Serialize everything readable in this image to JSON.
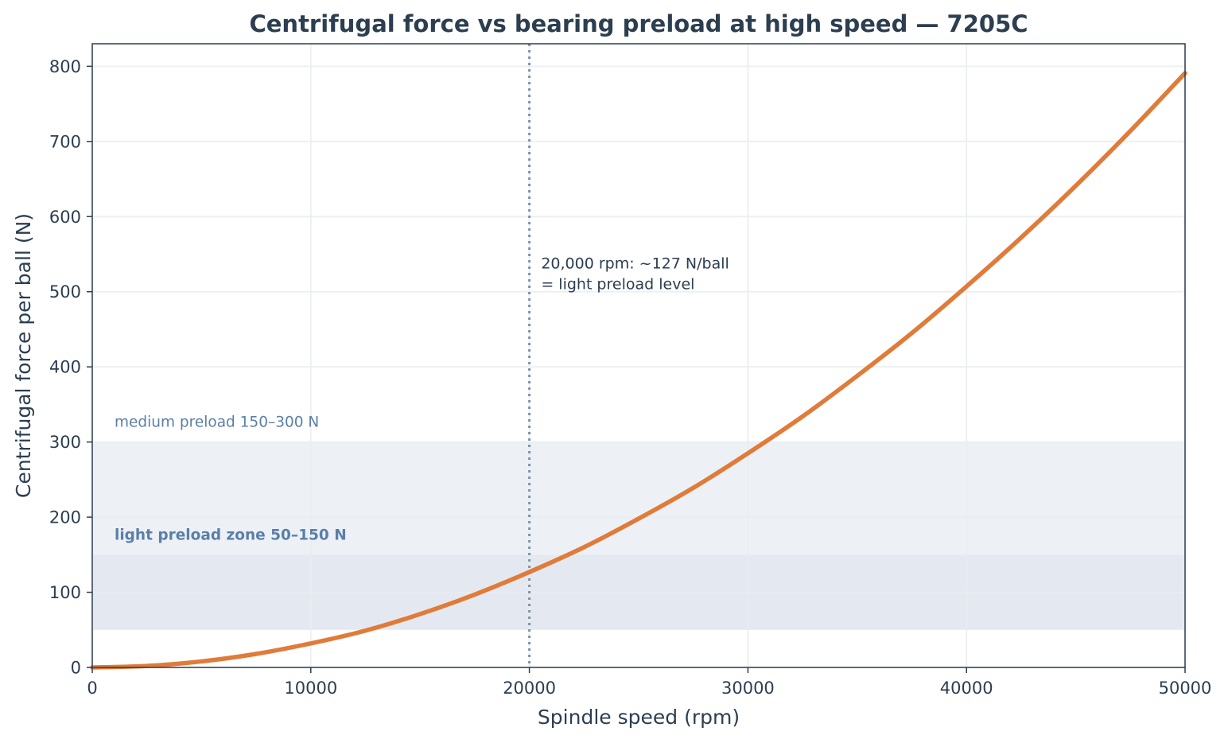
{
  "chart_data": {
    "type": "line",
    "title": "Centrifugal force vs bearing preload at high speed — 7205C",
    "xlabel": "Spindle speed (rpm)",
    "ylabel": "Centrifugal force per ball (N)",
    "xlim": [
      0,
      50000
    ],
    "ylim": [
      0,
      830
    ],
    "x_ticks": [
      "0",
      "10000",
      "20000",
      "30000",
      "40000",
      "50000"
    ],
    "y_ticks": [
      "0",
      "100",
      "200",
      "300",
      "400",
      "500",
      "600",
      "700",
      "800"
    ],
    "grid": true,
    "series": [
      {
        "x": [
          0,
          2500,
          5000,
          7500,
          10000,
          12500,
          15000,
          17500,
          20000,
          22500,
          25000,
          27500,
          30000,
          32500,
          35000,
          37500,
          40000,
          42500,
          45000,
          47500,
          50000
        ],
        "values": [
          0,
          2,
          8,
          18,
          32,
          49,
          71,
          97,
          127,
          160,
          198,
          239,
          285,
          334,
          388,
          445,
          507,
          572,
          641,
          714,
          791
        ],
        "color": "#e07b39"
      }
    ],
    "bands": [
      {
        "label": "medium preload 150–300 N",
        "y_range": [
          150,
          300
        ],
        "color": "#dfe6ec",
        "label_color": "#5a7fa8",
        "bold": false
      },
      {
        "label": "light preload zone 50–150 N",
        "y_range": [
          50,
          150
        ],
        "color": "#c9d3e3",
        "label_color": "#5a7fa8",
        "bold": true
      }
    ],
    "vline": {
      "x": 20000,
      "color": "#7f93a6"
    },
    "annotation": {
      "x": 20500,
      "y": 530,
      "lines": [
        "20,000 rpm: ~127 N/ball",
        "= light preload level"
      ]
    }
  }
}
